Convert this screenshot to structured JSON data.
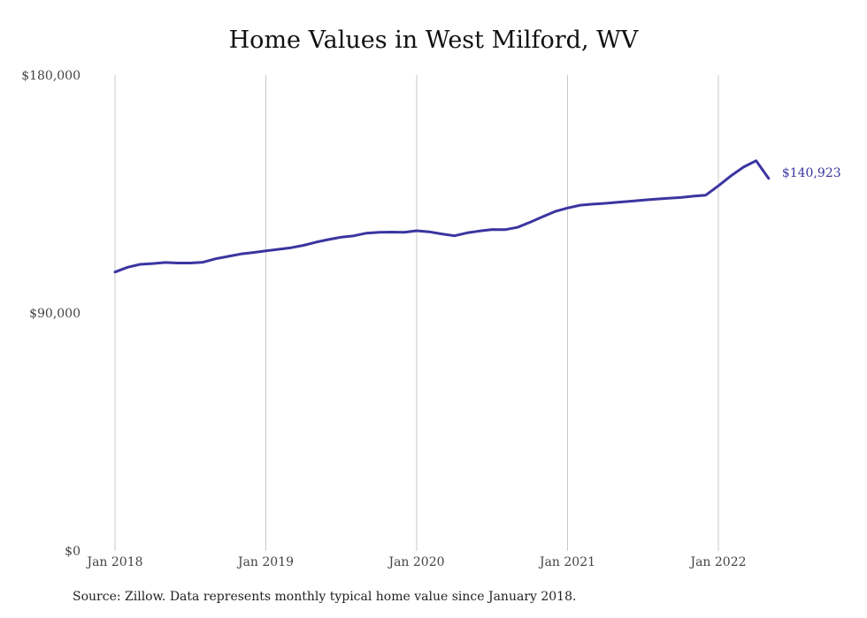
{
  "title": "Home Values in West Milford, WV",
  "source": "Source: Zillow. Data represents monthly typical home value since January 2018.",
  "colors": {
    "line": "#3b35a0",
    "grid": "#c8c8c8"
  },
  "chart_data": {
    "type": "line",
    "title": "Home Values in West Milford, WV",
    "xlabel": "",
    "ylabel": "",
    "ylim": [
      0,
      180000
    ],
    "yticks": [
      {
        "value": 0,
        "label": "$0"
      },
      {
        "value": 90000,
        "label": "$90,000"
      },
      {
        "value": 180000,
        "label": "$180,000"
      }
    ],
    "xticks": [
      {
        "value": "2018-01",
        "label": "Jan 2018"
      },
      {
        "value": "2019-01",
        "label": "Jan 2019"
      },
      {
        "value": "2020-01",
        "label": "Jan 2020"
      },
      {
        "value": "2021-01",
        "label": "Jan 2021"
      },
      {
        "value": "2022-01",
        "label": "Jan 2022"
      }
    ],
    "grid": "vertical",
    "end_label": "$140,923",
    "series": [
      {
        "x": [
          "2018-01",
          "2018-02",
          "2018-03",
          "2018-04",
          "2018-05",
          "2018-06",
          "2018-07",
          "2018-08",
          "2018-09",
          "2018-10",
          "2018-11",
          "2018-12",
          "2019-01",
          "2019-02",
          "2019-03",
          "2019-04",
          "2019-05",
          "2019-06",
          "2019-07",
          "2019-08",
          "2019-09",
          "2019-10",
          "2019-11",
          "2019-12",
          "2020-01",
          "2020-02",
          "2020-03",
          "2020-04",
          "2020-05",
          "2020-06",
          "2020-07",
          "2020-08",
          "2020-09",
          "2020-10",
          "2020-11",
          "2020-12",
          "2021-01",
          "2021-02",
          "2021-03",
          "2021-04",
          "2021-05",
          "2021-06",
          "2021-07",
          "2021-08",
          "2021-09",
          "2021-10",
          "2021-11",
          "2021-12",
          "2022-01",
          "2022-02",
          "2022-03",
          "2022-04",
          "2022-05"
        ],
        "values": [
          105500,
          107300,
          108400,
          108700,
          109100,
          108900,
          108900,
          109200,
          110500,
          111400,
          112300,
          112900,
          113500,
          114100,
          114700,
          115600,
          116800,
          117800,
          118700,
          119200,
          120200,
          120500,
          120600,
          120500,
          121100,
          120700,
          119900,
          119200,
          120300,
          121000,
          121600,
          121500,
          122400,
          124300,
          126400,
          128400,
          129700,
          130800,
          131200,
          131500,
          131900,
          132300,
          132700,
          133100,
          133400,
          133700,
          134200,
          134600,
          138100,
          141900,
          145200,
          147600,
          140923
        ]
      }
    ]
  }
}
